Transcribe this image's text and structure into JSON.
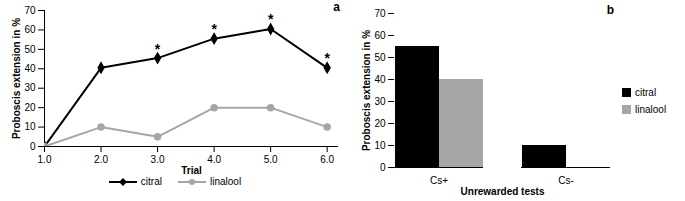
{
  "chart_data": [
    {
      "type": "line",
      "title": "a",
      "x": [
        1,
        2,
        3,
        4,
        5,
        6
      ],
      "xlim": [
        1,
        6.2
      ],
      "xticks": [
        1,
        2,
        3,
        4,
        5,
        6
      ],
      "x_label": "Trial",
      "y_label": "Proboscis extension in %",
      "ylim": [
        0,
        70
      ],
      "yticks": [
        0,
        10,
        20,
        30,
        40,
        50,
        60,
        70
      ],
      "legend": "bottom",
      "series": [
        {
          "name": "citral",
          "color": "#000000",
          "marker": "diamond",
          "values": [
            0,
            40.5,
            45.5,
            55.5,
            60.5,
            40.5
          ]
        },
        {
          "name": "linalool",
          "color": "#a6a6a6",
          "marker": "circle",
          "values": [
            0,
            10,
            5,
            20,
            20,
            10
          ]
        }
      ],
      "annotations": [
        {
          "x": 3,
          "text": "*"
        },
        {
          "x": 4,
          "text": "*"
        },
        {
          "x": 5,
          "text": "*"
        },
        {
          "x": 6,
          "text": "*"
        }
      ]
    },
    {
      "type": "bar",
      "title": "b",
      "categories": [
        "Cs+",
        "Cs-"
      ],
      "x_label": "Unrewarded tests",
      "y_label": "Proboscis extension in %",
      "ylim": [
        0,
        70
      ],
      "yticks": [
        0,
        10,
        20,
        30,
        40,
        50,
        60,
        70
      ],
      "legend": "right",
      "series": [
        {
          "name": "citral",
          "color": "#000000",
          "values": [
            55,
            10
          ]
        },
        {
          "name": "linalool",
          "color": "#a6a6a6",
          "values": [
            40,
            0
          ]
        }
      ]
    }
  ]
}
